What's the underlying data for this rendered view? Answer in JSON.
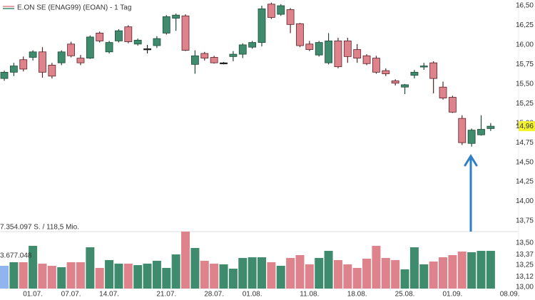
{
  "chart_data": [
    {
      "type": "candlestick",
      "title": "E.ON SE (ENAG99) (EOAN) - 1 Tag",
      "categories": [
        null,
        null,
        null,
        "01.07.",
        null,
        null,
        null,
        "07.07.",
        null,
        null,
        null,
        "14.07.",
        null,
        null,
        null,
        null,
        null,
        "21.07.",
        null,
        null,
        null,
        null,
        "28.07.",
        null,
        null,
        null,
        "01.08.",
        null,
        null,
        null,
        null,
        null,
        "11.08.",
        null,
        null,
        null,
        null,
        "18.08.",
        null,
        null,
        null,
        null,
        "25.08.",
        null,
        null,
        null,
        null,
        "01.09.",
        null,
        null,
        null,
        null,
        null,
        "08.09."
      ],
      "open": [
        15.57,
        15.65,
        15.81,
        15.84,
        15.91,
        15.74,
        15.77,
        16.01,
        15.83,
        15.83,
        16.15,
        15.91,
        16.05,
        16.23,
        16.01,
        15.95,
        15.99,
        16.15,
        16.34,
        16.37,
        15.75,
        15.89,
        15.84,
        15.77,
        15.85,
        15.88,
        15.97,
        16.03,
        16.52,
        16.39,
        16.45,
        16.27,
        16.01,
        15.87,
        15.77,
        16.05,
        16.05,
        15.94,
        15.86,
        15.83,
        15.67,
        15.54,
        15.46,
        15.61,
        15.72,
        15.77,
        15.46,
        15.33,
        15.06,
        14.74,
        14.85,
        14.93,
        null,
        null
      ],
      "high": [
        15.67,
        15.77,
        15.85,
        15.93,
        15.97,
        15.77,
        15.93,
        16.04,
        15.87,
        16.12,
        16.17,
        16.05,
        16.2,
        16.25,
        16.08,
        16.0,
        16.11,
        16.38,
        16.4,
        16.39,
        15.93,
        15.91,
        15.86,
        15.78,
        15.92,
        16.02,
        16.05,
        16.5,
        16.54,
        16.52,
        16.47,
        16.28,
        16.05,
        16.05,
        16.15,
        16.09,
        16.09,
        16.01,
        15.88,
        15.86,
        15.7,
        15.56,
        15.5,
        15.68,
        15.77,
        15.79,
        15.53,
        15.35,
        15.1,
        14.93,
        15.1,
        15.0,
        null,
        null
      ],
      "low": [
        15.54,
        15.6,
        15.66,
        15.8,
        15.58,
        15.57,
        15.74,
        15.84,
        15.74,
        15.82,
        16.03,
        15.89,
        16.03,
        16.02,
        15.99,
        15.89,
        15.96,
        16.13,
        16.18,
        15.92,
        15.63,
        15.8,
        15.76,
        15.75,
        15.79,
        15.83,
        15.95,
        15.98,
        16.33,
        16.37,
        16.15,
        15.97,
        15.92,
        15.85,
        15.75,
        15.7,
        15.77,
        15.77,
        15.74,
        15.63,
        15.6,
        15.48,
        15.37,
        15.57,
        15.68,
        15.38,
        15.3,
        15.13,
        14.72,
        14.7,
        14.84,
        14.9,
        null,
        null
      ],
      "close": [
        15.65,
        15.73,
        15.69,
        15.91,
        15.65,
        15.6,
        15.91,
        15.86,
        15.77,
        16.1,
        16.05,
        16.03,
        16.18,
        16.04,
        16.06,
        15.95,
        16.08,
        16.36,
        16.38,
        15.93,
        15.86,
        15.83,
        15.77,
        15.77,
        15.88,
        16.0,
        16.03,
        16.46,
        16.35,
        16.5,
        16.26,
        15.99,
        15.94,
        16.03,
        16.05,
        15.72,
        15.85,
        15.83,
        15.76,
        15.65,
        15.63,
        15.51,
        15.49,
        15.65,
        15.73,
        15.57,
        15.32,
        15.14,
        14.75,
        14.91,
        14.92,
        14.96,
        null,
        null
      ],
      "up_color": "#3e8c6d",
      "down_color": "#de828b",
      "flat_color": "#222222",
      "ylim": [
        13.75,
        16.5
      ],
      "yticks": [
        {
          "value": 13.75,
          "label": "13,75"
        },
        {
          "value": 14.0,
          "label": "14,00"
        },
        {
          "value": 14.25,
          "label": "14,25"
        },
        {
          "value": 14.5,
          "label": "14,50"
        },
        {
          "value": 14.75,
          "label": "14,75"
        },
        {
          "value": 15.0,
          "label": "15,00"
        },
        {
          "value": 15.25,
          "label": "15,25"
        },
        {
          "value": 15.5,
          "label": "15,50"
        },
        {
          "value": 15.75,
          "label": "15,75"
        },
        {
          "value": 16.0,
          "label": "16,00"
        },
        {
          "value": 16.25,
          "label": "16,25"
        },
        {
          "value": 16.5,
          "label": "16,50"
        }
      ],
      "close_label": "14,96",
      "close_label_color": "#f2f230"
    },
    {
      "type": "volume",
      "values": [
        2940000,
        3400000,
        3400000,
        5520000,
        3220000,
        2940000,
        2760000,
        3400000,
        3400000,
        5330000,
        2670000,
        3680000,
        3220000,
        3220000,
        3030000,
        3220000,
        3590000,
        2670000,
        4410000,
        7354097,
        5240000,
        3590000,
        3220000,
        3130000,
        2570000,
        3950000,
        4040000,
        4040000,
        3400000,
        2940000,
        3950000,
        4320000,
        3130000,
        3950000,
        4870000,
        3680000,
        3130000,
        2670000,
        3860000,
        5520000,
        3950000,
        3680000,
        2480000,
        5330000,
        3130000,
        3490000,
        4040000,
        4320000,
        4780000,
        4690000,
        4870000,
        4870000,
        null,
        null
      ],
      "highlight_color": "#8fb4ee",
      "ylim": [
        0,
        7354097
      ],
      "yticks": [
        {
          "value": 3677048,
          "label": "3.677.048"
        },
        {
          "value": 7354097,
          "label": "7.354.097 S. / 118,5 Mio."
        }
      ],
      "y2lim": [
        13.0,
        13.5
      ],
      "y2ticks": [
        {
          "value": 13.0,
          "label": "13,00"
        },
        {
          "value": 13.12,
          "label": "13,12"
        },
        {
          "value": 13.25,
          "label": "13,25"
        },
        {
          "value": 13.37,
          "label": "13,37"
        },
        {
          "value": 13.5,
          "label": "13,50"
        }
      ]
    }
  ]
}
